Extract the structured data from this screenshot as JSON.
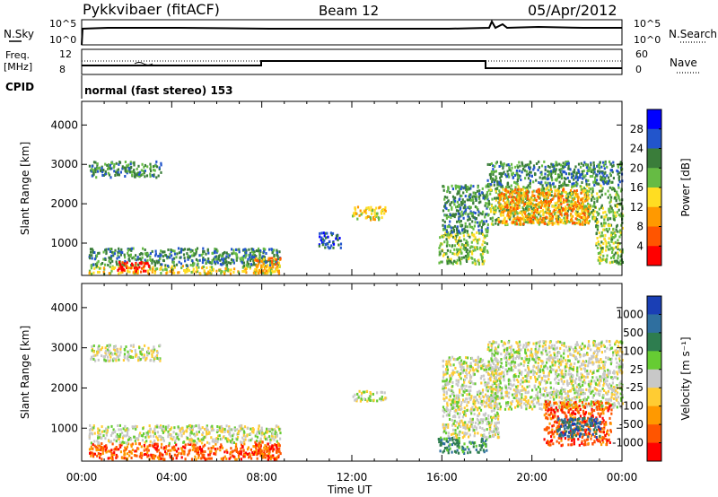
{
  "header": {
    "station": "Pykkvibaer (fitACF)",
    "beam": "Beam 12",
    "date": "05/Apr/2012"
  },
  "noise_panel": {
    "left_label": "N.Sky",
    "right_label": "N.Search",
    "left_ticks": [
      "10^5",
      "10^0"
    ],
    "right_ticks": [
      "10^5",
      "10^0"
    ]
  },
  "freq_panel": {
    "left_label_1": "Freq.",
    "left_label_2": "[MHz]",
    "left_ticks": [
      "12",
      "8"
    ],
    "right_label": "Nave",
    "right_ticks": [
      "60",
      "0"
    ]
  },
  "cpid": {
    "label": "CPID",
    "value": "normal (fast stereo) 153"
  },
  "time_axis": {
    "label": "Time UT",
    "ticks": [
      "00:00",
      "04:00",
      "08:00",
      "12:00",
      "16:00",
      "20:00",
      "00:00"
    ]
  },
  "chart_data": [
    {
      "type": "heatmap",
      "name": "power",
      "ylabel": "Slant Range [km]",
      "yticks": [
        1000,
        2000,
        3000,
        4000
      ],
      "ylim": [
        180,
        4600
      ],
      "xlim_hours": [
        0,
        24
      ],
      "colorbar": {
        "label": "Power [dB]",
        "ticks": [
          "4",
          "8",
          "12",
          "16",
          "20",
          "24",
          "28"
        ],
        "colors": [
          "#0000ff",
          "#2255cc",
          "#3a7d3a",
          "#66bb44",
          "#ffdd22",
          "#ff9900",
          "#ff5500",
          "#ff0000"
        ]
      },
      "regions": [
        {
          "t": [
            0.3,
            8.8
          ],
          "r": [
            250,
            450
          ],
          "level": 4
        },
        {
          "t": [
            0.3,
            8.8
          ],
          "r": [
            450,
            900
          ],
          "level": 2
        },
        {
          "t": [
            1.5,
            3.0
          ],
          "r": [
            300,
            550
          ],
          "level": 7
        },
        {
          "t": [
            0.3,
            3.5
          ],
          "r": [
            2700,
            3100
          ],
          "level": 2
        },
        {
          "t": [
            7.6,
            8.8
          ],
          "r": [
            250,
            650
          ],
          "level": 5
        },
        {
          "t": [
            10.5,
            11.5
          ],
          "r": [
            900,
            1300
          ],
          "level": 1
        },
        {
          "t": [
            12.0,
            13.5
          ],
          "r": [
            1600,
            1950
          ],
          "level": 4
        },
        {
          "t": [
            15.8,
            18.0
          ],
          "r": [
            500,
            1300
          ],
          "level": 3
        },
        {
          "t": [
            16.0,
            18.0
          ],
          "r": [
            1300,
            2500
          ],
          "level": 2
        },
        {
          "t": [
            18.0,
            24.0
          ],
          "r": [
            1500,
            2500
          ],
          "level": 3
        },
        {
          "t": [
            18.0,
            24.0
          ],
          "r": [
            2500,
            3100
          ],
          "level": 2
        },
        {
          "t": [
            18.5,
            22.5
          ],
          "r": [
            1500,
            2400
          ],
          "level": 5
        },
        {
          "t": [
            22.8,
            24.0
          ],
          "r": [
            500,
            1500
          ],
          "level": 3
        }
      ]
    },
    {
      "type": "heatmap",
      "name": "velocity",
      "ylabel": "Slant Range [km]",
      "yticks": [
        1000,
        2000,
        3000,
        4000
      ],
      "ylim": [
        180,
        4600
      ],
      "xlim_hours": [
        0,
        24
      ],
      "colorbar": {
        "label": "Velocity [m s⁻¹]",
        "ticks": [
          "1000",
          "500",
          "100",
          "25",
          "-25",
          "-100",
          "-500",
          "-1000"
        ],
        "colors": [
          "#1a3fb5",
          "#2f6f9f",
          "#2e7d4f",
          "#66cc33",
          "#c8c8c8",
          "#ffcc33",
          "#ff9900",
          "#ff5500",
          "#ff0000"
        ]
      },
      "regions": [
        {
          "t": [
            0.3,
            8.8
          ],
          "r": [
            250,
            650
          ],
          "level": 7
        },
        {
          "t": [
            0.3,
            8.8
          ],
          "r": [
            650,
            1100
          ],
          "level": 4
        },
        {
          "t": [
            0.3,
            3.5
          ],
          "r": [
            2700,
            3100
          ],
          "level": 4
        },
        {
          "t": [
            7.6,
            8.8
          ],
          "r": [
            250,
            700
          ],
          "level": 7
        },
        {
          "t": [
            12.0,
            13.5
          ],
          "r": [
            1700,
            1950
          ],
          "level": 4
        },
        {
          "t": [
            15.8,
            18.0
          ],
          "r": [
            400,
            800
          ],
          "level": 2
        },
        {
          "t": [
            16.0,
            18.5
          ],
          "r": [
            800,
            2800
          ],
          "level": 4
        },
        {
          "t": [
            18.0,
            24.0
          ],
          "r": [
            1500,
            3200
          ],
          "level": 4
        },
        {
          "t": [
            20.5,
            23.5
          ],
          "r": [
            600,
            1700
          ],
          "level": 7
        },
        {
          "t": [
            21.0,
            23.0
          ],
          "r": [
            800,
            1300
          ],
          "level": 1
        }
      ]
    }
  ]
}
